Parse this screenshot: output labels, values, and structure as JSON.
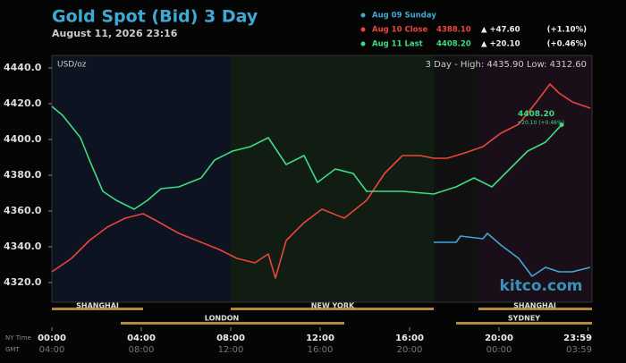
{
  "chart_data": {
    "type": "line",
    "title": "Gold Spot (Bid) 3 Day",
    "subtitle": "August 11, 2026 23:16",
    "unit_label": "USD/oz",
    "range_text": "3 Day - High: 4435.90  Low: 4312.60",
    "watermark": "kitco.com",
    "x_row_labels": [
      "NY Time",
      "GMT"
    ],
    "sessions_top": [
      "SHANGHAI",
      "NEW YORK",
      "SHANGHAI"
    ],
    "sessions_bottom": [
      "LONDON",
      "SYDNEY"
    ],
    "xlim": [
      0,
      24.16
    ],
    "xticks": [
      {
        "value": 0,
        "label": "00:00"
      },
      {
        "value": 4,
        "label": "04:00"
      },
      {
        "value": 8,
        "label": "08:00"
      },
      {
        "value": 12,
        "label": "12:00"
      },
      {
        "value": 16,
        "label": "16:00"
      },
      {
        "value": 20,
        "label": "20:00"
      },
      {
        "value": 23.98,
        "label": "23:59"
      }
    ],
    "gmt_labels": [
      "04:00",
      "08:00",
      "12:00",
      "16:00",
      "20:00",
      "00:00",
      "03:59"
    ],
    "ylim": [
      4309,
      4447
    ],
    "yticks": [
      {
        "value": 4320,
        "label": "4320.0"
      },
      {
        "value": 4340,
        "label": "4340.0"
      },
      {
        "value": 4360,
        "label": "4360.0"
      },
      {
        "value": 4380,
        "label": "4380.0"
      },
      {
        "value": 4400,
        "label": "4400.0"
      },
      {
        "value": 4420,
        "label": "4420.0"
      },
      {
        "value": 4440,
        "label": "4440.0"
      }
    ],
    "annotations": [
      {
        "text": "4408.20"
      },
      {
        "text": "+20.10 (+0.46%)"
      }
    ],
    "series": [
      {
        "name": "Aug 09 Sunday",
        "color": "#3fa9d6",
        "x": [
          17.08,
          18.08,
          18.28,
          19.28,
          19.48,
          20.08,
          20.88,
          21.48,
          22.08,
          22.68,
          23.28,
          24.08
        ],
        "values": [
          4342.5,
          4342.5,
          4346,
          4344.5,
          4347.5,
          4341,
          4333.5,
          4323.5,
          4328.5,
          4326,
          4326,
          4328.5
        ]
      },
      {
        "name": "Aug 10 Close",
        "color": "#e8463c",
        "last": "4388.10",
        "change": "▲ +47.60",
        "change_pct": "(+1.10%)",
        "x": [
          0,
          0.88,
          1.68,
          2.48,
          3.28,
          4.08,
          4.68,
          5.68,
          6.48,
          7.48,
          8.28,
          9.08,
          9.68,
          10.0,
          10.48,
          11.28,
          12.08,
          13.08,
          14.08,
          14.88,
          15.68,
          16.48,
          17.08,
          17.68,
          18.48,
          19.28,
          20.08,
          20.88,
          21.68,
          22.28,
          22.68,
          23.28,
          24.08
        ],
        "values": [
          4326,
          4333.5,
          4343.5,
          4351,
          4356,
          4358.5,
          4354.5,
          4347.5,
          4343.5,
          4338.5,
          4333.5,
          4331,
          4336,
          4322.5,
          4343.5,
          4353.5,
          4361,
          4356,
          4366,
          4381,
          4391,
          4391,
          4389.5,
          4389.5,
          4392.5,
          4396,
          4403.5,
          4408.5,
          4421,
          4431,
          4426,
          4421,
          4417.5
        ]
      },
      {
        "name": "Aug 11 Last",
        "color": "#3ddc84",
        "last": "4408.20",
        "change": "▲ +20.10",
        "change_pct": "(+0.46%)",
        "x": [
          0,
          0.48,
          1.28,
          1.68,
          2.28,
          2.88,
          3.68,
          4.28,
          4.88,
          5.68,
          6.68,
          7.28,
          8.08,
          8.88,
          9.68,
          10.48,
          11.28,
          11.88,
          12.68,
          13.48,
          14.08,
          14.88,
          15.68,
          17.08,
          18.08,
          18.88,
          19.68,
          20.48,
          21.28,
          22.08,
          22.8
        ],
        "values": [
          4418.5,
          4413.5,
          4401,
          4388.5,
          4371,
          4366,
          4361,
          4366,
          4372.5,
          4373.5,
          4378.5,
          4388.5,
          4393.5,
          4396,
          4401,
          4386,
          4391,
          4376,
          4383.5,
          4381,
          4371,
          4371,
          4371,
          4369.5,
          4373.5,
          4378.5,
          4373.5,
          4383.5,
          4393.5,
          4398.5,
          4408.2
        ]
      }
    ]
  }
}
